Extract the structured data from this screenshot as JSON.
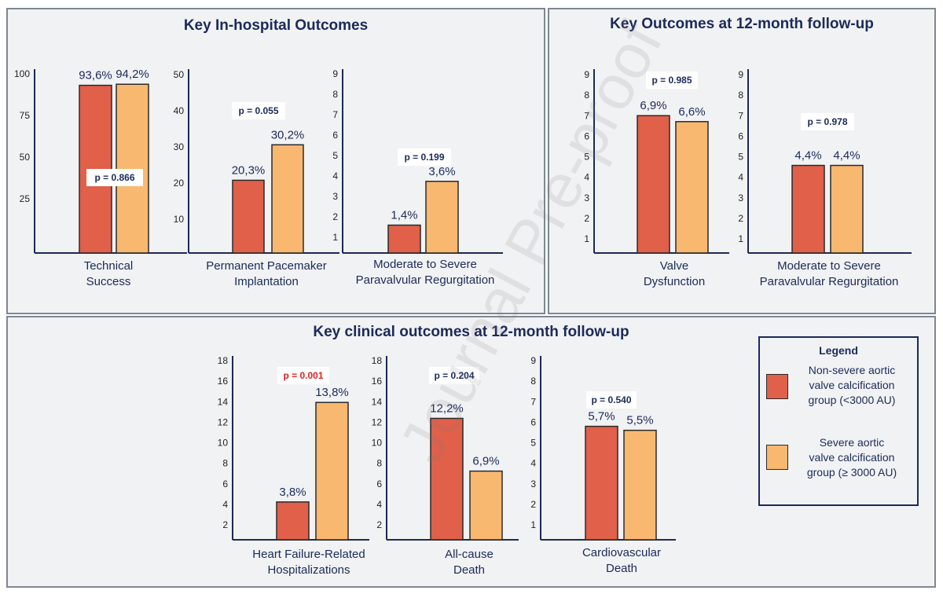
{
  "panels": {
    "inhospital_title": "Key In-hospital Outcomes",
    "followup_title": "Key Outcomes at 12-month follow-up",
    "clinical_title": "Key clinical outcomes at 12-month follow-up"
  },
  "legend": {
    "title": "Legend",
    "items": [
      {
        "label": "Non-severe aortic valve calcification group (<3000 AU)",
        "lines": [
          "Non-severe aortic",
          "valve calcification",
          "group (<3000 AU)"
        ],
        "color": "#e0604a"
      },
      {
        "label": "Severe aortic valve calcification group (≥ 3000 AU)",
        "lines": [
          "Severe aortic",
          "valve calcification",
          "group (≥ 3000 AU)"
        ],
        "color": "#f9b870"
      }
    ]
  },
  "watermark": "Journal Pre-proof",
  "chart_data": [
    {
      "type": "bar",
      "panel": "Key In-hospital Outcomes",
      "category": [
        "Technical",
        "Success"
      ],
      "series": [
        {
          "name": "Non-severe aortic valve calcification group (<3000 AU)",
          "values": [
            93.6
          ]
        },
        {
          "name": "Severe aortic valve calcification group (≥ 3000 AU)",
          "values": [
            94.2
          ]
        }
      ],
      "value_labels": [
        "93,6%",
        "94,2%"
      ],
      "p_value": "p = 0.866",
      "yticks": [
        "25",
        "50",
        "75",
        "100"
      ],
      "ylim": [
        0,
        100
      ]
    },
    {
      "type": "bar",
      "panel": "Key In-hospital Outcomes",
      "category": [
        "Permanent Pacemaker",
        "Implantation"
      ],
      "series": [
        {
          "name": "Non-severe aortic valve calcification group (<3000 AU)",
          "values": [
            20.3
          ]
        },
        {
          "name": "Severe aortic valve calcification group (≥ 3000 AU)",
          "values": [
            30.2
          ]
        }
      ],
      "value_labels": [
        "20,3%",
        "30,2%"
      ],
      "p_value": "p = 0.055",
      "yticks": [
        "10",
        "20",
        "30",
        "40",
        "50"
      ],
      "ylim": [
        0,
        50
      ]
    },
    {
      "type": "bar",
      "panel": "Key In-hospital Outcomes",
      "category": [
        "Moderate to Severe",
        "Paravalvular Regurgitation"
      ],
      "series": [
        {
          "name": "Non-severe aortic valve calcification group (<3000 AU)",
          "values": [
            1.4
          ]
        },
        {
          "name": "Severe aortic valve calcification group (≥ 3000 AU)",
          "values": [
            3.6
          ]
        }
      ],
      "value_labels": [
        "1,4%",
        "3,6%"
      ],
      "p_value": "p = 0.199",
      "yticks": [
        "1",
        "2",
        "3",
        "4",
        "5",
        "6",
        "7",
        "8",
        "9"
      ],
      "ylim": [
        0,
        9
      ]
    },
    {
      "type": "bar",
      "panel": "Key Outcomes at 12-month follow-up",
      "category": [
        "Valve",
        "Dysfunction"
      ],
      "series": [
        {
          "name": "Non-severe aortic valve calcification group (<3000 AU)",
          "values": [
            6.9
          ]
        },
        {
          "name": "Severe aortic valve calcification group (≥ 3000 AU)",
          "values": [
            6.6
          ]
        }
      ],
      "value_labels": [
        "6,9%",
        "6,6%"
      ],
      "p_value": "p = 0.985",
      "yticks": [
        "1",
        "2",
        "3",
        "4",
        "5",
        "6",
        "7",
        "8",
        "9"
      ],
      "ylim": [
        0,
        9
      ]
    },
    {
      "type": "bar",
      "panel": "Key Outcomes at 12-month follow-up",
      "category": [
        "Moderate to Severe",
        "Paravalvular Regurgitation"
      ],
      "series": [
        {
          "name": "Non-severe aortic valve calcification group (<3000 AU)",
          "values": [
            4.4
          ]
        },
        {
          "name": "Severe aortic valve calcification group (≥ 3000 AU)",
          "values": [
            4.4
          ]
        }
      ],
      "value_labels": [
        "4,4%",
        "4,4%"
      ],
      "p_value": "p = 0.978",
      "yticks": [
        "1",
        "2",
        "3",
        "4",
        "5",
        "6",
        "7",
        "8",
        "9"
      ],
      "ylim": [
        0,
        9
      ]
    },
    {
      "type": "bar",
      "panel": "Key clinical outcomes at 12-month follow-up",
      "category": [
        "Heart Failure-Related",
        "Hospitalizations"
      ],
      "series": [
        {
          "name": "Non-severe aortic valve calcification group (<3000 AU)",
          "values": [
            3.8
          ]
        },
        {
          "name": "Severe aortic valve calcification group (≥ 3000 AU)",
          "values": [
            13.8
          ]
        }
      ],
      "value_labels": [
        "3,8%",
        "13,8%"
      ],
      "p_value": "p = 0.001",
      "p_color": "#e02020",
      "yticks": [
        "2",
        "4",
        "6",
        "8",
        "10",
        "12",
        "14",
        "16",
        "18"
      ],
      "ylim": [
        0,
        18
      ]
    },
    {
      "type": "bar",
      "panel": "Key clinical outcomes at 12-month follow-up",
      "category": [
        "All-cause",
        "Death"
      ],
      "series": [
        {
          "name": "Non-severe aortic valve calcification group (<3000 AU)",
          "values": [
            12.2
          ]
        },
        {
          "name": "Severe aortic valve calcification group (≥ 3000 AU)",
          "values": [
            6.9
          ]
        }
      ],
      "value_labels": [
        "12,2%",
        "6,9%"
      ],
      "p_value": "p = 0.204",
      "yticks": [
        "2",
        "4",
        "6",
        "8",
        "10",
        "12",
        "14",
        "16",
        "18"
      ],
      "ylim": [
        0,
        18
      ]
    },
    {
      "type": "bar",
      "panel": "Key clinical outcomes at 12-month follow-up",
      "category": [
        "Cardiovascular",
        "Death"
      ],
      "series": [
        {
          "name": "Non-severe aortic valve calcification group (<3000 AU)",
          "values": [
            5.7
          ]
        },
        {
          "name": "Severe aortic valve calcification group (≥ 3000 AU)",
          "values": [
            5.5
          ]
        }
      ],
      "value_labels": [
        "5,7%",
        "5,5%"
      ],
      "p_value": "p = 0.540",
      "yticks": [
        "1",
        "2",
        "3",
        "4",
        "5",
        "6",
        "7",
        "8",
        "9"
      ],
      "ylim": [
        0,
        9
      ]
    }
  ]
}
